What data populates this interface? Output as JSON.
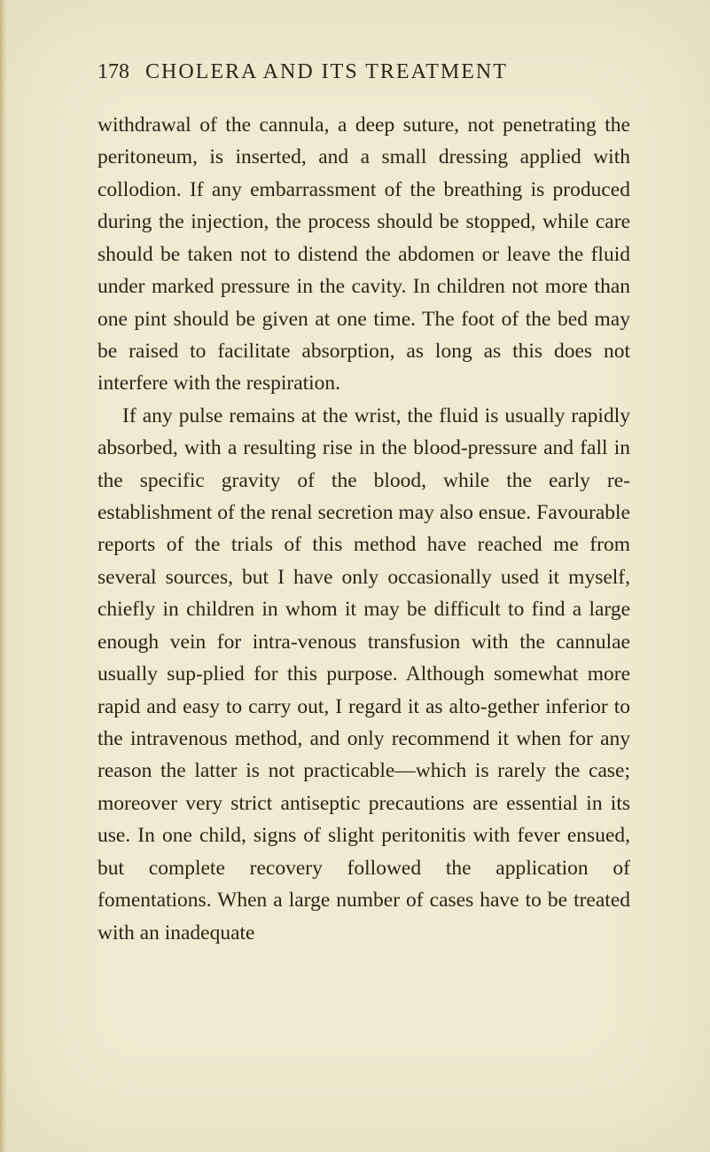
{
  "page": {
    "number": "178",
    "running_title": "CHOLERA AND ITS TREATMENT",
    "background_color": "#f0ead0",
    "text_color": "#2a2419",
    "font_family": "Times New Roman",
    "body_fontsize": 23.5,
    "title_fontsize": 24,
    "line_height": 1.55
  },
  "paragraphs": [
    {
      "indent": false,
      "text": "withdrawal of the cannula, a deep suture, not penetrating the peritoneum, is inserted, and a small dressing applied with collodion. If any embarrassment of the breathing is produced during the injection, the process should be stopped, while care should be taken not to distend the abdomen or leave the fluid under marked pressure in the cavity. In children not more than one pint should be given at one time. The foot of the bed may be raised to facilitate absorption, as long as this does not interfere with the respiration."
    },
    {
      "indent": true,
      "text": "If any pulse remains at the wrist, the fluid is usually rapidly absorbed, with a resulting rise in the blood-pressure and fall in the specific gravity of the blood, while the early re-establishment of the renal secretion may also ensue. Favourable reports of the trials of this method have reached me from several sources, but I have only occasionally used it myself, chiefly in children in whom it may be difficult to find a large enough vein for intra-venous transfusion with the cannulae usually sup-plied for this purpose. Although somewhat more rapid and easy to carry out, I regard it as alto-gether inferior to the intravenous method, and only recommend it when for any reason the latter is not practicable—which is rarely the case; moreover very strict antiseptic precautions are essential in its use. In one child, signs of slight peritonitis with fever ensued, but complete recovery followed the application of fomentations. When a large number of cases have to be treated with an inadequate"
    }
  ]
}
